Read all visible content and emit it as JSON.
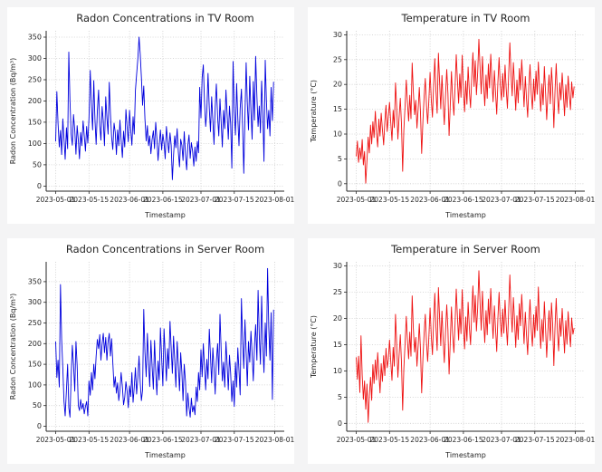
{
  "page": {
    "background": "#f4f4f5",
    "panel_background": "#ffffff",
    "grid_color": "#cccccc",
    "axis_color": "#262626"
  },
  "x_axis": {
    "label": "Timestamp",
    "tick_labels": [
      "2023-05-01",
      "2023-05-15",
      "2023-06-01",
      "2023-06-15",
      "2023-07-01",
      "2023-07-15",
      "2023-08-01"
    ],
    "tick_days": [
      0,
      14,
      31,
      45,
      61,
      75,
      92
    ],
    "range_days": [
      -4,
      96
    ]
  },
  "chart_data": [
    {
      "type": "line",
      "title": "Radon Concentrations in TV Room",
      "xlabel": "Timestamp",
      "ylabel": "Radon Concentration (Bq/m³)",
      "line_color": "#0000dd",
      "yticks": [
        0,
        50,
        100,
        150,
        200,
        250,
        300,
        350
      ],
      "ylim": [
        -12,
        365
      ],
      "x_start_day": 0,
      "x_step_days": 0.5,
      "grid": true,
      "legend": "none",
      "values": [
        105,
        222,
        148,
        92,
        131,
        74,
        158,
        110,
        63,
        137,
        88,
        315,
        201,
        122,
        96,
        168,
        131,
        75,
        142,
        108,
        64,
        126,
        95,
        153,
        118,
        82,
        140,
        101,
        160,
        272,
        188,
        132,
        248,
        156,
        98,
        175,
        226,
        142,
        108,
        187,
        153,
        95,
        210,
        161,
        122,
        244,
        170,
        115,
        86,
        148,
        126,
        74,
        132,
        95,
        155,
        108,
        67,
        129,
        92,
        180,
        140,
        104,
        178,
        132,
        96,
        163,
        122,
        225,
        262,
        300,
        350,
        310,
        255,
        190,
        235,
        158,
        106,
        142,
        95,
        118,
        76,
        109,
        130,
        88,
        150,
        112,
        60,
        98,
        132,
        85,
        122,
        101,
        64,
        140,
        108,
        78,
        125,
        96,
        15,
        72,
        118,
        90,
        135,
        80,
        45,
        110,
        96,
        60,
        128,
        74,
        38,
        96,
        120,
        65,
        102,
        83,
        47,
        92,
        58,
        105,
        78,
        232,
        160,
        255,
        285,
        198,
        140,
        176,
        265,
        182,
        128,
        210,
        156,
        98,
        185,
        240,
        162,
        118,
        205,
        150,
        92,
        178,
        135,
        226,
        168,
        110,
        188,
        146,
        42,
        293,
        175,
        120,
        241,
        160,
        95,
        182,
        228,
        140,
        30,
        165,
        290,
        195,
        132,
        258,
        178,
        110,
        246,
        155,
        305,
        210,
        140,
        188,
        125,
        247,
        172,
        58,
        296,
        200,
        135,
        178,
        118,
        232,
        154,
        245
      ]
    },
    {
      "type": "line",
      "title": "Temperature in TV Room",
      "xlabel": "Timestamp",
      "ylabel": "Temperature (°C)",
      "line_color": "#ee1111",
      "yticks": [
        0,
        5,
        10,
        15,
        20,
        25,
        30
      ],
      "ylim": [
        -1.5,
        30.8
      ],
      "x_start_day": 0,
      "x_step_days": 0.5,
      "grid": true,
      "legend": "none",
      "values": [
        5.5,
        8.6,
        4.3,
        7.2,
        5.0,
        8.9,
        3.8,
        6.5,
        0.1,
        4.8,
        9.4,
        6.2,
        11.8,
        8.0,
        12.5,
        9.3,
        14.6,
        10.2,
        7.4,
        13.0,
        9.6,
        14.2,
        11.0,
        7.8,
        12.4,
        15.8,
        10.5,
        13.6,
        16.4,
        12.2,
        8.7,
        14.8,
        11.3,
        20.3,
        15.6,
        9.0,
        13.5,
        17.2,
        12.0,
        2.5,
        10.8,
        15.4,
        20.9,
        16.2,
        12.6,
        17.8,
        13.1,
        24.3,
        18.5,
        13.9,
        16.8,
        11.2,
        15.0,
        19.4,
        14.3,
        6.1,
        12.7,
        17.5,
        21.2,
        15.8,
        12.1,
        16.6,
        22.4,
        17.0,
        13.4,
        19.8,
        25.2,
        18.6,
        14.2,
        26.3,
        20.5,
        15.1,
        21.8,
        16.4,
        11.9,
        17.6,
        23.0,
        18.2,
        9.7,
        15.9,
        22.6,
        17.3,
        13.8,
        19.5,
        26.0,
        20.8,
        16.2,
        22.1,
        17.4,
        25.9,
        19.0,
        14.5,
        20.7,
        16.0,
        23.5,
        18.8,
        15.3,
        21.4,
        26.4,
        19.6,
        24.8,
        17.9,
        22.5,
        29.1,
        23.4,
        18.1,
        25.6,
        20.2,
        15.7,
        21.9,
        17.2,
        24.1,
        19.3,
        26.1,
        21.0,
        16.5,
        22.8,
        18.4,
        14.0,
        20.4,
        25.4,
        19.8,
        16.8,
        22.2,
        17.5,
        23.9,
        19.1,
        15.2,
        21.3,
        28.4,
        22.0,
        17.7,
        24.4,
        19.9,
        14.8,
        20.9,
        16.3,
        23.2,
        18.9,
        25.0,
        20.6,
        15.5,
        21.6,
        17.1,
        13.4,
        19.7,
        24.0,
        18.3,
        15.0,
        21.1,
        16.7,
        22.7,
        18.0,
        24.5,
        19.4,
        14.6,
        20.1,
        15.9,
        23.6,
        18.6,
        12.9,
        17.8,
        21.9,
        16.1,
        23.4,
        19.2,
        11.3,
        18.7,
        24.2,
        17.6,
        14.1,
        20.3,
        16.9,
        22.3,
        18.2,
        13.7,
        19.9,
        15.4,
        21.7,
        18.0,
        14.9,
        20.5,
        17.3,
        19.6
      ]
    },
    {
      "type": "line",
      "title": "Radon Concentrations in Server Room",
      "xlabel": "Timestamp",
      "ylabel": "Radon Concentration (Bq/m³)",
      "line_color": "#0000dd",
      "yticks": [
        0,
        50,
        100,
        150,
        200,
        250,
        300,
        350
      ],
      "ylim": [
        -12,
        398
      ],
      "x_start_day": 0,
      "x_step_days": 0.5,
      "grid": true,
      "legend": "none",
      "values": [
        205,
        118,
        160,
        95,
        343,
        210,
        140,
        60,
        25,
        88,
        150,
        45,
        22,
        120,
        196,
        150,
        85,
        205,
        148,
        50,
        38,
        65,
        42,
        55,
        30,
        48,
        60,
        25,
        110,
        75,
        130,
        88,
        150,
        115,
        170,
        210,
        188,
        222,
        160,
        200,
        225,
        178,
        215,
        160,
        205,
        225,
        170,
        212,
        155,
        95,
        120,
        80,
        105,
        62,
        88,
        130,
        95,
        52,
        70,
        108,
        85,
        45,
        98,
        72,
        130,
        58,
        95,
        142,
        78,
        118,
        170,
        105,
        62,
        88,
        283,
        180,
        120,
        225,
        155,
        96,
        208,
        146,
        90,
        208,
        135,
        76,
        158,
        112,
        238,
        165,
        98,
        236,
        172,
        110,
        188,
        140,
        254,
        190,
        128,
        218,
        160,
        95,
        205,
        148,
        86,
        178,
        130,
        62,
        150,
        108,
        25,
        80,
        45,
        22,
        68,
        35,
        50,
        28,
        95,
        60,
        130,
        88,
        185,
        120,
        200,
        145,
        88,
        162,
        115,
        235,
        170,
        105,
        190,
        140,
        78,
        158,
        200,
        125,
        271,
        185,
        110,
        155,
        95,
        205,
        150,
        88,
        172,
        128,
        60,
        110,
        48,
        155,
        95,
        190,
        135,
        76,
        309,
        210,
        140,
        258,
        180,
        98,
        205,
        155,
        230,
        175,
        110,
        195,
        246,
        160,
        329,
        220,
        150,
        315,
        200,
        130,
        250,
        170,
        382,
        240,
        160,
        275,
        65,
        282
      ]
    },
    {
      "type": "line",
      "title": "Temperature in Server Room",
      "xlabel": "Timestamp",
      "ylabel": "Temperature (°C)",
      "line_color": "#ee1111",
      "yticks": [
        0,
        5,
        10,
        15,
        20,
        25,
        30
      ],
      "ylim": [
        -1.5,
        30.8
      ],
      "x_start_day": 0,
      "x_step_days": 0.5,
      "grid": true,
      "legend": "none",
      "values": [
        12.6,
        8.4,
        12.8,
        5.9,
        16.7,
        9.2,
        4.6,
        8.1,
        2.7,
        7.5,
        0.2,
        5.3,
        8.8,
        4.4,
        11.2,
        7.6,
        12.1,
        8.3,
        13.5,
        9.7,
        5.8,
        11.4,
        8.0,
        12.9,
        9.1,
        14.3,
        10.6,
        12.2,
        15.9,
        11.7,
        8.2,
        14.5,
        10.9,
        20.8,
        15.2,
        8.8,
        13.1,
        16.9,
        11.6,
        2.5,
        10.4,
        15.0,
        20.4,
        15.7,
        12.3,
        17.4,
        12.8,
        24.3,
        18.1,
        13.6,
        16.4,
        10.9,
        14.7,
        19.0,
        14.0,
        5.8,
        12.4,
        17.1,
        20.8,
        15.5,
        11.8,
        16.2,
        22.0,
        16.7,
        13.1,
        19.4,
        24.8,
        18.3,
        13.9,
        25.9,
        20.1,
        14.8,
        21.4,
        16.1,
        11.6,
        17.3,
        22.6,
        17.9,
        9.4,
        15.6,
        22.2,
        17.0,
        13.5,
        19.1,
        25.6,
        20.4,
        15.9,
        21.8,
        17.1,
        25.5,
        18.7,
        14.2,
        20.3,
        15.7,
        23.1,
        18.5,
        15.0,
        21.0,
        26.2,
        19.3,
        24.4,
        17.6,
        22.1,
        29.1,
        23.0,
        17.8,
        25.2,
        19.8,
        15.4,
        21.5,
        16.9,
        23.7,
        19.0,
        25.7,
        20.6,
        16.2,
        22.4,
        18.1,
        13.7,
        20.0,
        25.0,
        19.5,
        16.5,
        21.8,
        17.2,
        23.5,
        18.8,
        14.9,
        20.9,
        28.3,
        21.6,
        17.4,
        24.0,
        19.6,
        14.5,
        20.5,
        16.0,
        22.8,
        18.6,
        24.6,
        20.2,
        15.2,
        21.2,
        16.8,
        13.1,
        19.3,
        23.6,
        18.0,
        14.7,
        20.7,
        16.4,
        22.3,
        17.7,
        26.0,
        19.1,
        14.3,
        19.8,
        15.6,
        23.2,
        18.3,
        12.6,
        17.5,
        21.5,
        15.8,
        23.0,
        18.9,
        11.0,
        18.4,
        23.8,
        17.3,
        13.8,
        20.0,
        16.6,
        21.9,
        17.9,
        13.4,
        19.6,
        15.1,
        21.3,
        17.7,
        14.6,
        20.1,
        17.0,
        18.2
      ]
    }
  ]
}
